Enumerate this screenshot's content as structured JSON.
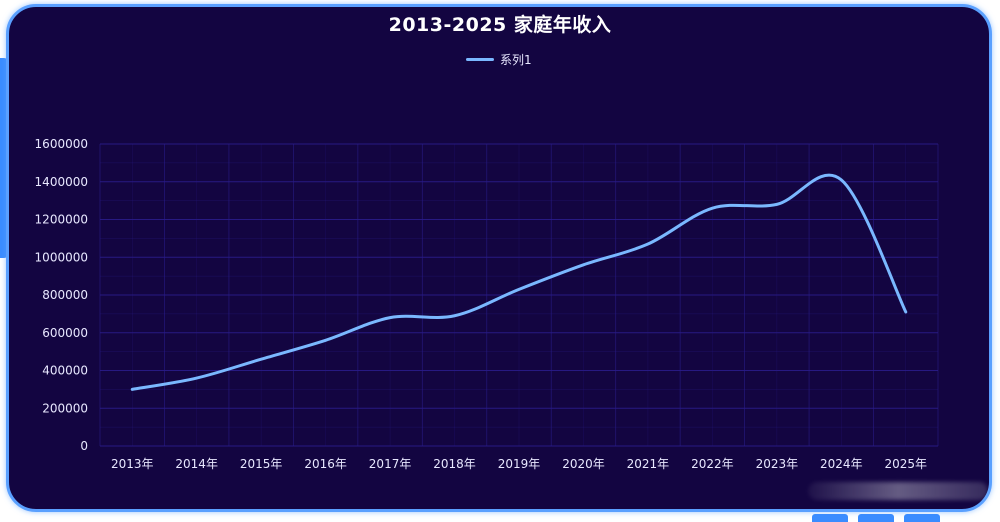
{
  "chart_data": {
    "type": "line",
    "title": "2013-2025 家庭年收入",
    "xlabel": "",
    "ylabel": "",
    "categories": [
      "2013年",
      "2014年",
      "2015年",
      "2016年",
      "2017年",
      "2018年",
      "2019年",
      "2020年",
      "2021年",
      "2022年",
      "2023年",
      "2024年",
      "2025年"
    ],
    "series": [
      {
        "name": "系列1",
        "values": [
          300000,
          360000,
          460000,
          560000,
          680000,
          690000,
          830000,
          960000,
          1070000,
          1260000,
          1280000,
          1410000,
          710000
        ]
      }
    ],
    "ylim": [
      0,
      1600000
    ],
    "yticks": [
      0,
      200000,
      400000,
      600000,
      800000,
      1000000,
      1200000,
      1400000,
      1600000
    ],
    "grid": true,
    "smooth": true,
    "legend_position": "top-center",
    "colors": {
      "background": "#130541",
      "border": "#5aa0ff",
      "line": "#7ab8ff",
      "grid": "#2a1c8a",
      "text": "#e8e8ff"
    }
  }
}
